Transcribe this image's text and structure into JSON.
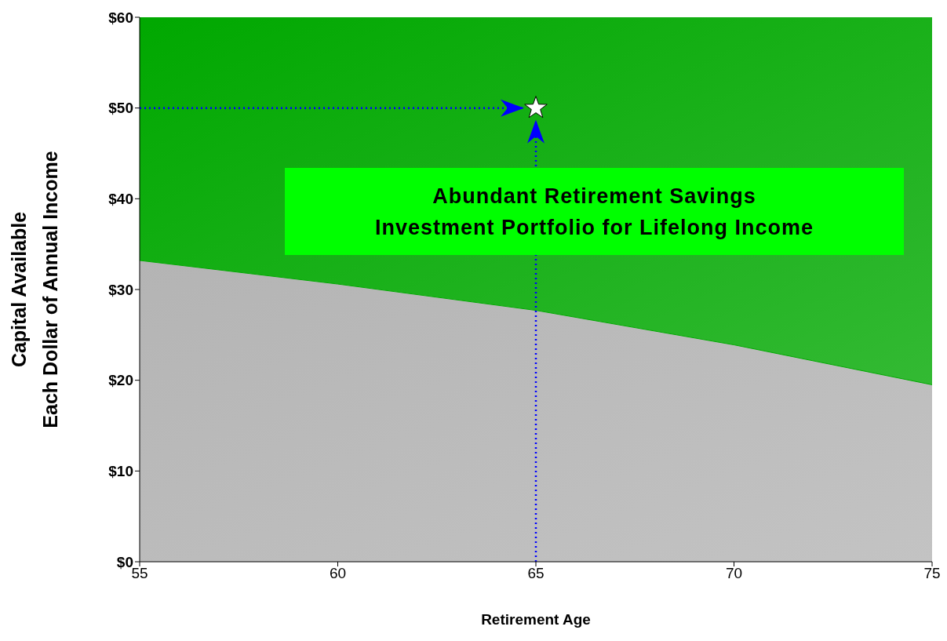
{
  "chart_data": {
    "type": "area",
    "stacked": true,
    "xlabel": "Retirement Age",
    "ylabel": "Capital Available\nEach Dollar of Annual Income",
    "x": [
      55,
      60,
      65,
      70,
      75
    ],
    "series": [
      {
        "color": "#b4b4b4",
        "values": [
          33.2,
          30.6,
          27.7,
          23.9,
          19.5
        ]
      },
      {
        "color": "#00a800",
        "values": [
          26.8,
          29.4,
          32.3,
          36.1,
          40.5
        ]
      },
      {
        "type": "scatter",
        "color": "#ffffff",
        "x": [
          65
        ],
        "values": [
          50
        ],
        "marker": "star"
      }
    ],
    "xlim": [
      55,
      75
    ],
    "xticks": [
      55,
      60,
      65,
      70,
      75
    ],
    "ylim": [
      0,
      60
    ],
    "yticks": [
      {
        "value": 0,
        "label": "$0"
      },
      {
        "value": 10,
        "label": "$10"
      },
      {
        "value": 20,
        "label": "$20"
      },
      {
        "value": 30,
        "label": "$30"
      },
      {
        "value": 40,
        "label": "$40"
      },
      {
        "value": 50,
        "label": "$50"
      },
      {
        "value": 60,
        "label": "$60"
      }
    ],
    "ref_lines": [
      {
        "axis": "x",
        "value": 65,
        "color": "#0000ff",
        "line_style": "dotted"
      },
      {
        "axis": "y",
        "value": 50,
        "color": "#0000ff",
        "line_style": "dotted"
      }
    ],
    "annotations": [
      "Abundant Retirement Savings\nInvestment Portfolio for Lifelong Income"
    ]
  }
}
